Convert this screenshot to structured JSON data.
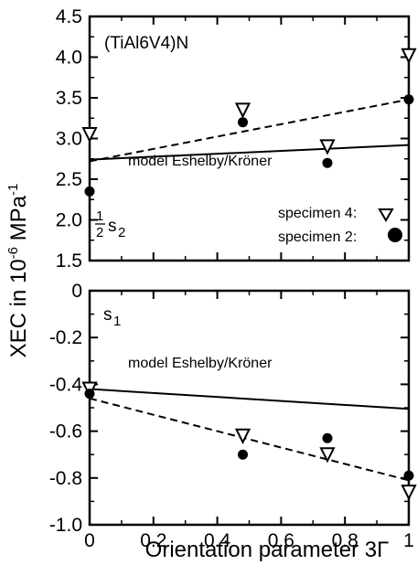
{
  "chart_data": [
    {
      "type": "scatter",
      "panel": "top",
      "annotation": "(TiAl6V4)N",
      "component_label": {
        "fraction_numerator": "1",
        "fraction_denominator": "2",
        "symbol": "s",
        "subscript": "2"
      },
      "ylim": [
        1.5,
        4.5
      ],
      "xlim": [
        0,
        1
      ],
      "yticks": [
        "1.5",
        "2.0",
        "2.5",
        "3.0",
        "3.5",
        "4.0",
        "4.5"
      ],
      "series": [
        {
          "name": "specimen 4:",
          "marker": "triangle-down-open",
          "x": [
            0,
            0.48,
            0.745,
            1
          ],
          "y": [
            3.05,
            3.35,
            2.9,
            4.02
          ]
        },
        {
          "name": "specimen 2:",
          "marker": "circle-filled",
          "x": [
            0,
            0.48,
            0.745,
            1
          ],
          "y": [
            2.35,
            3.2,
            2.7,
            3.48
          ]
        }
      ],
      "lines": [
        {
          "label": "model Eshelby/Kröner",
          "style": "solid",
          "x": [
            0,
            1
          ],
          "y": [
            2.74,
            2.92
          ]
        },
        {
          "style": "dashed",
          "x": [
            0,
            1
          ],
          "y": [
            2.72,
            3.48
          ]
        }
      ]
    },
    {
      "type": "scatter",
      "panel": "bottom",
      "component_label": {
        "symbol": "s",
        "subscript": "1"
      },
      "ylim": [
        -1.0,
        0
      ],
      "xlim": [
        0,
        1
      ],
      "yticks": [
        "0",
        "-0.2",
        "-0.4",
        "-0.6",
        "-0.8",
        "-1.0"
      ],
      "xticks": [
        "0",
        "0.2",
        "0.4",
        "0.6",
        "0.8",
        "1"
      ],
      "series": [
        {
          "name": "specimen 4:",
          "marker": "triangle-down-open",
          "x": [
            0,
            0.48,
            0.745,
            1
          ],
          "y": [
            -0.42,
            -0.62,
            -0.7,
            -0.86
          ]
        },
        {
          "name": "specimen 2:",
          "marker": "circle-filled",
          "x": [
            0,
            0.48,
            0.745,
            1
          ],
          "y": [
            -0.44,
            -0.7,
            -0.63,
            -0.79
          ]
        }
      ],
      "lines": [
        {
          "label": "model Eshelby/Kröner",
          "style": "solid",
          "x": [
            0,
            1
          ],
          "y": [
            -0.42,
            -0.505
          ]
        },
        {
          "style": "dashed",
          "x": [
            0,
            1
          ],
          "y": [
            -0.46,
            -0.81
          ]
        }
      ]
    }
  ],
  "ylabel": {
    "main": "XEC in 10",
    "exponent": "-6",
    "unit": " MPa",
    "unit_exponent": "-1"
  },
  "xlabel": "Orientation parameter 3Γ",
  "model_label": "model Eshelby/Kröner",
  "legend": {
    "specimen4": "specimen 4:",
    "specimen2": "specimen 2:"
  },
  "panel_annotation": "(TiAl6V4)N"
}
